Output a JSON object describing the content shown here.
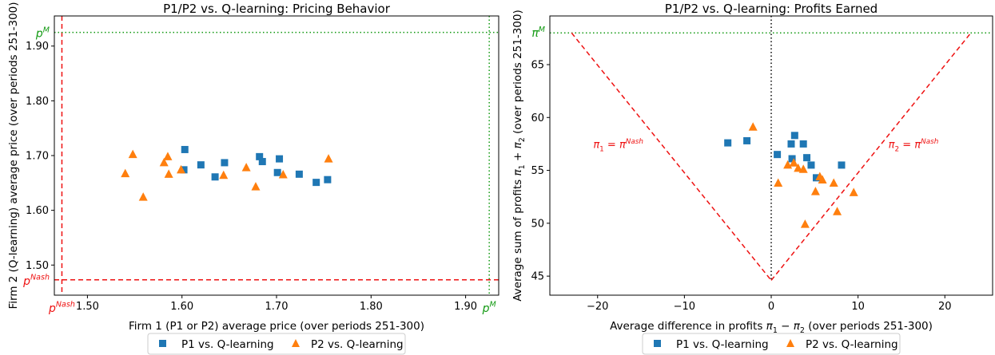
{
  "legend": {
    "p1_label": "P1 vs. Q-learning",
    "p2_label": "P2 vs. Q-learning",
    "placement": "bottom-center"
  },
  "colors": {
    "p1": "#1f77b4",
    "p2": "#ff7f0e",
    "nash": "#ee1111",
    "monopoly": "#119911",
    "zero_line": "#000000"
  },
  "chart_data": [
    {
      "type": "scatter",
      "title": "P1/P2 vs. Q-learning: Pricing Behavior",
      "xlabel": "Firm 1 (P1 or P2) average price (over periods 251-300)",
      "ylabel": "Firm 2 (Q-learning) average price (over periods 251-300)",
      "xlim": [
        1.465,
        1.935
      ],
      "ylim": [
        1.445,
        1.955
      ],
      "xticks": [
        {
          "value": 1.5,
          "label": "1.50"
        },
        {
          "value": 1.6,
          "label": "1.60"
        },
        {
          "value": 1.7,
          "label": "1.70"
        },
        {
          "value": 1.8,
          "label": "1.80"
        },
        {
          "value": 1.9,
          "label": "1.90"
        }
      ],
      "yticks": [
        {
          "value": 1.5,
          "label": "1.50"
        },
        {
          "value": 1.6,
          "label": "1.60"
        },
        {
          "value": 1.7,
          "label": "1.70"
        },
        {
          "value": 1.8,
          "label": "1.80"
        },
        {
          "value": 1.9,
          "label": "1.90"
        }
      ],
      "ref_lines": [
        {
          "axis": "x",
          "value": 1.473,
          "style": "dashed",
          "color": "#ee1111",
          "base": "p",
          "sup": "Nash"
        },
        {
          "axis": "y",
          "value": 1.473,
          "style": "dashed",
          "color": "#ee1111",
          "base": "p",
          "sup": "Nash"
        },
        {
          "axis": "x",
          "value": 1.925,
          "style": "dotted",
          "color": "#119911",
          "base": "p",
          "sup": "M"
        },
        {
          "axis": "y",
          "value": 1.925,
          "style": "dotted",
          "color": "#119911",
          "base": "p",
          "sup": "M"
        }
      ],
      "grid": false,
      "series": [
        {
          "name": "P1 vs. Q-learning",
          "marker": "square",
          "color": "#1f77b4",
          "points": [
            [
              1.603,
              1.711
            ],
            [
              1.602,
              1.674
            ],
            [
              1.62,
              1.683
            ],
            [
              1.635,
              1.661
            ],
            [
              1.645,
              1.687
            ],
            [
              1.682,
              1.698
            ],
            [
              1.685,
              1.689
            ],
            [
              1.703,
              1.694
            ],
            [
              1.701,
              1.669
            ],
            [
              1.724,
              1.666
            ],
            [
              1.742,
              1.651
            ],
            [
              1.754,
              1.656
            ]
          ]
        },
        {
          "name": "P2 vs. Q-learning",
          "marker": "triangle",
          "color": "#ff7f0e",
          "points": [
            [
              1.54,
              1.667
            ],
            [
              1.548,
              1.702
            ],
            [
              1.559,
              1.624
            ],
            [
              1.581,
              1.687
            ],
            [
              1.585,
              1.698
            ],
            [
              1.586,
              1.666
            ],
            [
              1.599,
              1.674
            ],
            [
              1.644,
              1.664
            ],
            [
              1.668,
              1.678
            ],
            [
              1.678,
              1.643
            ],
            [
              1.707,
              1.665
            ],
            [
              1.755,
              1.694
            ]
          ]
        }
      ]
    },
    {
      "type": "scatter",
      "title": "P1/P2 vs. Q-learning: Profits Earned",
      "xlabel": "Average difference in profits π1 − π2 (over periods 251-300)",
      "ylabel": "Average sum of profits π1 + π2 (over periods 251-300)",
      "xlim": [
        -25.5,
        25.5
      ],
      "ylim": [
        43.2,
        69.6
      ],
      "xticks": [
        {
          "value": -20,
          "label": "−20"
        },
        {
          "value": -10,
          "label": "−10"
        },
        {
          "value": 0,
          "label": "0"
        },
        {
          "value": 10,
          "label": "10"
        },
        {
          "value": 20,
          "label": "20"
        }
      ],
      "yticks": [
        {
          "value": 45,
          "label": "45"
        },
        {
          "value": 50,
          "label": "50"
        },
        {
          "value": 55,
          "label": "55"
        },
        {
          "value": 60,
          "label": "60"
        },
        {
          "value": 65,
          "label": "65"
        }
      ],
      "monopoly_level": {
        "value": 68.0,
        "style": "dotted",
        "color": "#119911",
        "base": "π",
        "sup": "M"
      },
      "nash_vertex": [
        0,
        44.6
      ],
      "nash_left_end": [
        -23.0,
        68.0
      ],
      "nash_right_end": [
        23.0,
        68.0
      ],
      "zero_line": {
        "value": 0,
        "style": "dotted",
        "color": "#000000"
      },
      "annotations": [
        {
          "id": "pi1-nash",
          "x": -20.5,
          "y": 57.1,
          "base": "π",
          "sub": "1",
          "mid": " = π",
          "sup": "Nash",
          "color": "#ee1111"
        },
        {
          "id": "pi2-nash",
          "x": 13.5,
          "y": 57.1,
          "base": "π",
          "sub": "2",
          "mid": " = π",
          "sup": "Nash",
          "color": "#ee1111"
        }
      ],
      "grid": false,
      "series": [
        {
          "name": "P1 vs. Q-learning",
          "marker": "square",
          "color": "#1f77b4",
          "points": [
            [
              -5.0,
              57.6
            ],
            [
              -2.8,
              57.8
            ],
            [
              0.7,
              56.5
            ],
            [
              2.3,
              57.5
            ],
            [
              2.7,
              58.3
            ],
            [
              2.4,
              56.1
            ],
            [
              3.7,
              57.5
            ],
            [
              4.1,
              56.2
            ],
            [
              4.6,
              55.5
            ],
            [
              5.2,
              54.3
            ],
            [
              8.1,
              55.5
            ]
          ]
        },
        {
          "name": "P2 vs. Q-learning",
          "marker": "triangle",
          "color": "#ff7f0e",
          "points": [
            [
              -2.1,
              59.1
            ],
            [
              0.8,
              53.8
            ],
            [
              1.9,
              55.5
            ],
            [
              2.6,
              55.7
            ],
            [
              3.1,
              55.2
            ],
            [
              3.7,
              55.1
            ],
            [
              3.9,
              49.9
            ],
            [
              5.1,
              53.0
            ],
            [
              5.6,
              54.4
            ],
            [
              5.9,
              54.1
            ],
            [
              7.2,
              53.8
            ],
            [
              7.6,
              51.1
            ],
            [
              9.5,
              52.9
            ]
          ]
        }
      ]
    }
  ]
}
